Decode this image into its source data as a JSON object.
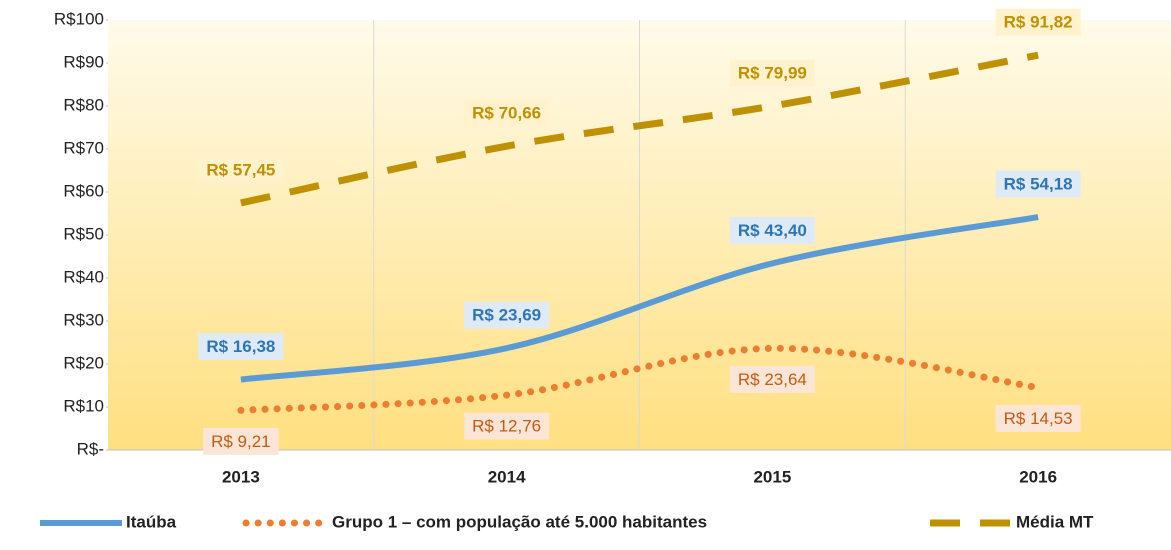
{
  "chart_data": {
    "type": "line",
    "categories": [
      "2013",
      "2014",
      "2015",
      "2016"
    ],
    "series": [
      {
        "name": "Itaúba",
        "color": "#5b9bd5",
        "style": "solid",
        "values": [
          16.38,
          23.69,
          43.4,
          54.18
        ],
        "value_labels": [
          "R$ 16,38",
          "R$ 23,69",
          "R$ 43,40",
          "R$ 54,18"
        ]
      },
      {
        "name": "Grupo 1 – com população até 5.000 habitantes",
        "color": "#ed7d31",
        "style": "dotted",
        "values": [
          9.21,
          12.76,
          23.64,
          14.53
        ],
        "value_labels": [
          "R$ 9,21",
          "R$ 12,76",
          "R$ 23,64",
          "R$ 14,53"
        ]
      },
      {
        "name": "Média MT",
        "color": "#bf9000",
        "style": "dashed",
        "values": [
          57.45,
          70.66,
          79.99,
          91.82
        ],
        "value_labels": [
          "R$ 57,45",
          "R$ 70,66",
          "R$ 79,99",
          "R$ 91,82"
        ]
      }
    ],
    "ylim": [
      0,
      100
    ],
    "yticks": [
      {
        "value": 0,
        "label": "R$-"
      },
      {
        "value": 10,
        "label": "R$10"
      },
      {
        "value": 20,
        "label": "R$20"
      },
      {
        "value": 30,
        "label": "R$30"
      },
      {
        "value": 40,
        "label": "R$40"
      },
      {
        "value": 50,
        "label": "R$50"
      },
      {
        "value": 60,
        "label": "R$60"
      },
      {
        "value": 70,
        "label": "R$70"
      },
      {
        "value": 80,
        "label": "R$80"
      },
      {
        "value": 90,
        "label": "R$90"
      },
      {
        "value": 100,
        "label": "R$100"
      }
    ],
    "legend": "bottom"
  }
}
